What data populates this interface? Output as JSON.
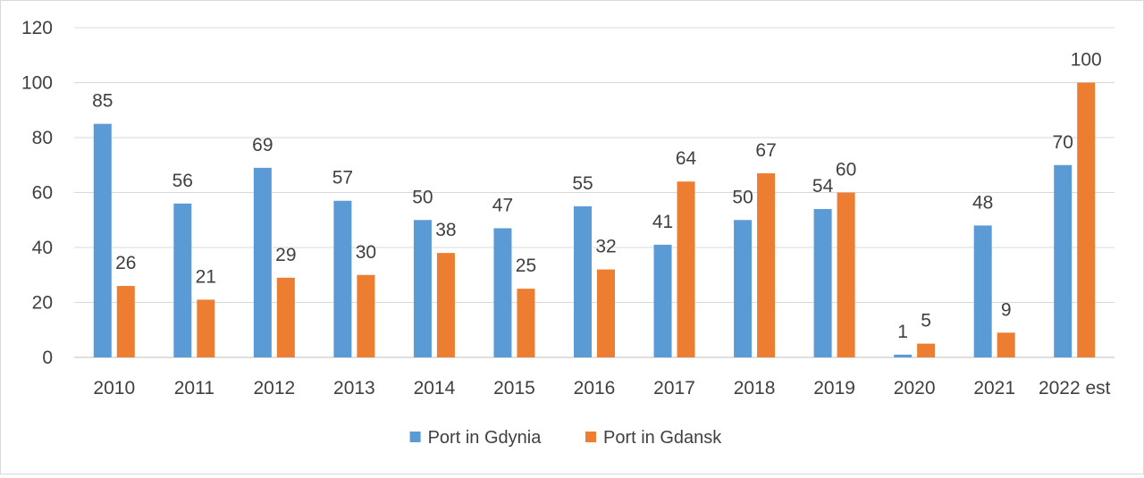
{
  "chart_data": {
    "type": "bar",
    "title": "",
    "xlabel": "",
    "ylabel": "",
    "ylim": [
      0,
      120
    ],
    "yticks": [
      0,
      20,
      40,
      60,
      80,
      100,
      120
    ],
    "grid": true,
    "legend_position": "bottom",
    "categories": [
      "2010",
      "2011",
      "2012",
      "2013",
      "2014",
      "2015",
      "2016",
      "2017",
      "2018",
      "2019",
      "2020",
      "2021",
      "2022 est"
    ],
    "series": [
      {
        "name": "Port in Gdynia",
        "color": "#5b9bd5",
        "values": [
          85,
          56,
          69,
          57,
          50,
          47,
          55,
          41,
          50,
          54,
          1,
          48,
          70
        ]
      },
      {
        "name": "Port in Gdansk",
        "color": "#ed7d31",
        "values": [
          26,
          21,
          29,
          30,
          38,
          25,
          32,
          64,
          67,
          60,
          5,
          9,
          100
        ]
      }
    ]
  }
}
